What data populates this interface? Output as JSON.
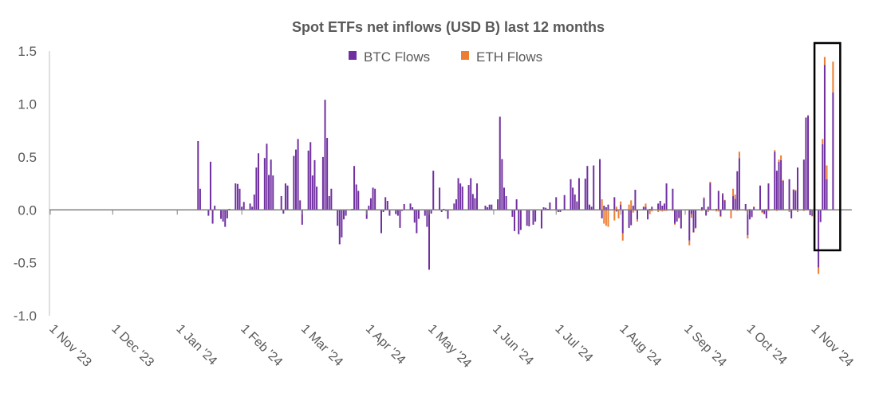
{
  "chart_data": {
    "type": "bar",
    "stacked": true,
    "title": "Spot ETFs net inflows (USD B) last 12 months",
    "xlabel": "",
    "ylabel": "",
    "ylim": [
      -1.0,
      1.5
    ],
    "xlim": [
      "2023-11-01",
      "2024-11-20"
    ],
    "grid": false,
    "legend_position": "top",
    "yticks": [
      -1.0,
      -0.5,
      0.0,
      0.5,
      1.0,
      1.5
    ],
    "ytick_labels": [
      "-1.0",
      "-0.5",
      "0.0",
      "0.5",
      "1.0",
      "1.5"
    ],
    "xticks": [
      "2023-11-01",
      "2023-12-01",
      "2024-01-01",
      "2024-02-01",
      "2024-03-01",
      "2024-04-01",
      "2024-05-01",
      "2024-06-01",
      "2024-07-01",
      "2024-08-01",
      "2024-09-01",
      "2024-10-01",
      "2024-11-01"
    ],
    "xtick_labels": [
      "1 Nov '23",
      "1 Dec '23",
      "1 Jan '24",
      "1 Feb '24",
      "1 Mar '24",
      "1 Apr '24",
      "1 May '24",
      "1 Jun '24",
      "1 Jul '24",
      "1 Aug '24",
      "1 Sep '24",
      "1 Oct '24",
      "1 Nov '24"
    ],
    "series_names": {
      "btc": "BTC Flows",
      "eth": "ETH Flows"
    },
    "colors": {
      "btc": "#7030A0",
      "eth": "#ED7D31",
      "axis": "#808080",
      "text": "#595959",
      "highlight": "#000000"
    },
    "highlight_range": [
      "2024-11-04",
      "2024-11-11"
    ],
    "data": [
      {
        "d": "2024-01-11",
        "btc": 0.65,
        "eth": 0
      },
      {
        "d": "2024-01-12",
        "btc": 0.2,
        "eth": 0
      },
      {
        "d": "2024-01-16",
        "btc": -0.055,
        "eth": 0
      },
      {
        "d": "2024-01-17",
        "btc": 0.455,
        "eth": 0
      },
      {
        "d": "2024-01-18",
        "btc": -0.13,
        "eth": 0
      },
      {
        "d": "2024-01-19",
        "btc": 0.04,
        "eth": 0
      },
      {
        "d": "2024-01-22",
        "btc": -0.085,
        "eth": 0
      },
      {
        "d": "2024-01-23",
        "btc": -0.11,
        "eth": 0
      },
      {
        "d": "2024-01-24",
        "btc": -0.16,
        "eth": 0
      },
      {
        "d": "2024-01-25",
        "btc": -0.08,
        "eth": 0
      },
      {
        "d": "2024-01-26",
        "btc": 0.01,
        "eth": 0
      },
      {
        "d": "2024-01-29",
        "btc": 0.25,
        "eth": 0
      },
      {
        "d": "2024-01-30",
        "btc": 0.245,
        "eth": 0
      },
      {
        "d": "2024-01-31",
        "btc": 0.2,
        "eth": 0
      },
      {
        "d": "2024-02-01",
        "btc": 0.03,
        "eth": 0
      },
      {
        "d": "2024-02-02",
        "btc": 0.075,
        "eth": 0
      },
      {
        "d": "2024-02-05",
        "btc": 0.06,
        "eth": 0
      },
      {
        "d": "2024-02-06",
        "btc": 0.03,
        "eth": 0
      },
      {
        "d": "2024-02-07",
        "btc": 0.145,
        "eth": 0
      },
      {
        "d": "2024-02-08",
        "btc": 0.4,
        "eth": 0
      },
      {
        "d": "2024-02-09",
        "btc": 0.535,
        "eth": 0
      },
      {
        "d": "2024-02-12",
        "btc": 0.49,
        "eth": 0
      },
      {
        "d": "2024-02-13",
        "btc": 0.625,
        "eth": 0
      },
      {
        "d": "2024-02-14",
        "btc": 0.33,
        "eth": 0
      },
      {
        "d": "2024-02-15",
        "btc": 0.475,
        "eth": 0
      },
      {
        "d": "2024-02-16",
        "btc": 0.325,
        "eth": 0
      },
      {
        "d": "2024-02-20",
        "btc": 0.13,
        "eth": 0
      },
      {
        "d": "2024-02-21",
        "btc": -0.035,
        "eth": 0
      },
      {
        "d": "2024-02-22",
        "btc": 0.25,
        "eth": 0
      },
      {
        "d": "2024-02-23",
        "btc": 0.23,
        "eth": 0
      },
      {
        "d": "2024-02-26",
        "btc": 0.51,
        "eth": 0
      },
      {
        "d": "2024-02-27",
        "btc": 0.57,
        "eth": 0
      },
      {
        "d": "2024-02-28",
        "btc": 0.67,
        "eth": 0
      },
      {
        "d": "2024-02-29",
        "btc": 0.09,
        "eth": 0
      },
      {
        "d": "2024-03-01",
        "btc": -0.14,
        "eth": 0
      },
      {
        "d": "2024-03-04",
        "btc": 0.56,
        "eth": 0
      },
      {
        "d": "2024-03-05",
        "btc": 0.64,
        "eth": 0
      },
      {
        "d": "2024-03-06",
        "btc": 0.325,
        "eth": 0
      },
      {
        "d": "2024-03-07",
        "btc": 0.47,
        "eth": 0
      },
      {
        "d": "2024-03-08",
        "btc": 0.22,
        "eth": 0
      },
      {
        "d": "2024-03-11",
        "btc": 0.5,
        "eth": 0
      },
      {
        "d": "2024-03-12",
        "btc": 1.04,
        "eth": 0
      },
      {
        "d": "2024-03-13",
        "btc": 0.68,
        "eth": 0
      },
      {
        "d": "2024-03-14",
        "btc": 0.13,
        "eth": 0
      },
      {
        "d": "2024-03-15",
        "btc": 0.2,
        "eth": 0
      },
      {
        "d": "2024-03-18",
        "btc": -0.15,
        "eth": 0
      },
      {
        "d": "2024-03-19",
        "btc": -0.325,
        "eth": 0
      },
      {
        "d": "2024-03-20",
        "btc": -0.26,
        "eth": 0
      },
      {
        "d": "2024-03-21",
        "btc": -0.09,
        "eth": 0
      },
      {
        "d": "2024-03-22",
        "btc": -0.055,
        "eth": 0
      },
      {
        "d": "2024-03-25",
        "btc": 0.01,
        "eth": 0
      },
      {
        "d": "2024-03-26",
        "btc": 0.415,
        "eth": 0
      },
      {
        "d": "2024-03-27",
        "btc": 0.24,
        "eth": 0
      },
      {
        "d": "2024-03-28",
        "btc": 0.18,
        "eth": 0
      },
      {
        "d": "2024-04-01",
        "btc": -0.085,
        "eth": 0
      },
      {
        "d": "2024-04-02",
        "btc": 0.04,
        "eth": 0
      },
      {
        "d": "2024-04-03",
        "btc": 0.11,
        "eth": 0
      },
      {
        "d": "2024-04-04",
        "btc": 0.21,
        "eth": 0
      },
      {
        "d": "2024-04-05",
        "btc": 0.2,
        "eth": 0
      },
      {
        "d": "2024-04-08",
        "btc": -0.22,
        "eth": 0
      },
      {
        "d": "2024-04-09",
        "btc": -0.02,
        "eth": 0
      },
      {
        "d": "2024-04-10",
        "btc": 0.12,
        "eth": 0
      },
      {
        "d": "2024-04-11",
        "btc": 0.085,
        "eth": 0
      },
      {
        "d": "2024-04-12",
        "btc": -0.055,
        "eth": 0
      },
      {
        "d": "2024-04-15",
        "btc": -0.04,
        "eth": 0
      },
      {
        "d": "2024-04-16",
        "btc": -0.055,
        "eth": 0
      },
      {
        "d": "2024-04-17",
        "btc": -0.17,
        "eth": 0
      },
      {
        "d": "2024-04-18",
        "btc": -0.01,
        "eth": 0
      },
      {
        "d": "2024-04-19",
        "btc": 0.055,
        "eth": 0
      },
      {
        "d": "2024-04-22",
        "btc": 0.06,
        "eth": 0
      },
      {
        "d": "2024-04-23",
        "btc": 0.025,
        "eth": 0
      },
      {
        "d": "2024-04-24",
        "btc": -0.12,
        "eth": 0
      },
      {
        "d": "2024-04-25",
        "btc": -0.22,
        "eth": 0
      },
      {
        "d": "2024-04-26",
        "btc": -0.085,
        "eth": 0
      },
      {
        "d": "2024-04-29",
        "btc": -0.055,
        "eth": 0
      },
      {
        "d": "2024-04-30",
        "btc": -0.16,
        "eth": 0
      },
      {
        "d": "2024-05-01",
        "btc": -0.565,
        "eth": 0
      },
      {
        "d": "2024-05-02",
        "btc": -0.035,
        "eth": 0
      },
      {
        "d": "2024-05-03",
        "btc": 0.37,
        "eth": 0
      },
      {
        "d": "2024-05-06",
        "btc": 0.21,
        "eth": 0
      },
      {
        "d": "2024-05-07",
        "btc": -0.02,
        "eth": 0
      },
      {
        "d": "2024-05-08",
        "btc": 0.01,
        "eth": 0
      },
      {
        "d": "2024-05-09",
        "btc": -0.01,
        "eth": 0
      },
      {
        "d": "2024-05-10",
        "btc": -0.085,
        "eth": 0
      },
      {
        "d": "2024-05-13",
        "btc": 0.06,
        "eth": 0
      },
      {
        "d": "2024-05-14",
        "btc": 0.1,
        "eth": 0
      },
      {
        "d": "2024-05-15",
        "btc": 0.3,
        "eth": 0
      },
      {
        "d": "2024-05-16",
        "btc": 0.25,
        "eth": 0
      },
      {
        "d": "2024-05-17",
        "btc": 0.22,
        "eth": 0
      },
      {
        "d": "2024-05-20",
        "btc": 0.235,
        "eth": 0
      },
      {
        "d": "2024-05-21",
        "btc": 0.3,
        "eth": 0
      },
      {
        "d": "2024-05-22",
        "btc": 0.15,
        "eth": 0
      },
      {
        "d": "2024-05-23",
        "btc": 0.11,
        "eth": 0
      },
      {
        "d": "2024-05-24",
        "btc": 0.25,
        "eth": 0
      },
      {
        "d": "2024-05-28",
        "btc": 0.04,
        "eth": 0
      },
      {
        "d": "2024-05-29",
        "btc": 0.025,
        "eth": 0
      },
      {
        "d": "2024-05-30",
        "btc": 0.05,
        "eth": 0
      },
      {
        "d": "2024-05-31",
        "btc": 0.05,
        "eth": 0
      },
      {
        "d": "2024-06-03",
        "btc": 0.1,
        "eth": 0
      },
      {
        "d": "2024-06-04",
        "btc": 0.88,
        "eth": 0
      },
      {
        "d": "2024-06-05",
        "btc": 0.48,
        "eth": 0
      },
      {
        "d": "2024-06-06",
        "btc": 0.21,
        "eth": 0
      },
      {
        "d": "2024-06-07",
        "btc": 0.13,
        "eth": 0
      },
      {
        "d": "2024-06-10",
        "btc": -0.065,
        "eth": 0
      },
      {
        "d": "2024-06-11",
        "btc": -0.2,
        "eth": 0
      },
      {
        "d": "2024-06-12",
        "btc": 0.1,
        "eth": 0
      },
      {
        "d": "2024-06-13",
        "btc": -0.23,
        "eth": 0
      },
      {
        "d": "2024-06-14",
        "btc": -0.19,
        "eth": 0
      },
      {
        "d": "2024-06-17",
        "btc": -0.15,
        "eth": 0
      },
      {
        "d": "2024-06-18",
        "btc": -0.155,
        "eth": 0
      },
      {
        "d": "2024-06-20",
        "btc": -0.14,
        "eth": 0
      },
      {
        "d": "2024-06-21",
        "btc": -0.11,
        "eth": 0
      },
      {
        "d": "2024-06-24",
        "btc": -0.175,
        "eth": 0
      },
      {
        "d": "2024-06-25",
        "btc": 0.025,
        "eth": 0
      },
      {
        "d": "2024-06-26",
        "btc": 0.02,
        "eth": 0
      },
      {
        "d": "2024-06-27",
        "btc": 0.01,
        "eth": 0
      },
      {
        "d": "2024-06-28",
        "btc": 0.07,
        "eth": 0
      },
      {
        "d": "2024-07-01",
        "btc": 0.12,
        "eth": 0
      },
      {
        "d": "2024-07-02",
        "btc": -0.02,
        "eth": 0
      },
      {
        "d": "2024-07-03",
        "btc": -0.02,
        "eth": 0
      },
      {
        "d": "2024-07-05",
        "btc": 0.14,
        "eth": 0
      },
      {
        "d": "2024-07-08",
        "btc": 0.29,
        "eth": 0
      },
      {
        "d": "2024-07-09",
        "btc": 0.21,
        "eth": 0
      },
      {
        "d": "2024-07-10",
        "btc": 0.145,
        "eth": 0
      },
      {
        "d": "2024-07-11",
        "btc": 0.08,
        "eth": 0
      },
      {
        "d": "2024-07-12",
        "btc": 0.3,
        "eth": 0
      },
      {
        "d": "2024-07-15",
        "btc": 0.295,
        "eth": 0
      },
      {
        "d": "2024-07-16",
        "btc": 0.415,
        "eth": 0
      },
      {
        "d": "2024-07-17",
        "btc": 0.05,
        "eth": 0
      },
      {
        "d": "2024-07-18",
        "btc": 0.03,
        "eth": 0
      },
      {
        "d": "2024-07-19",
        "btc": 0.42,
        "eth": 0
      },
      {
        "d": "2024-07-22",
        "btc": 0.48,
        "eth": 0
      },
      {
        "d": "2024-07-23",
        "btc": -0.08,
        "eth": 0.1
      },
      {
        "d": "2024-07-24",
        "btc": 0.04,
        "eth": -0.13
      },
      {
        "d": "2024-07-25",
        "btc": 0.025,
        "eth": -0.15
      },
      {
        "d": "2024-07-26",
        "btc": 0.05,
        "eth": -0.16
      },
      {
        "d": "2024-07-29",
        "btc": 0.12,
        "eth": -0.1
      },
      {
        "d": "2024-07-30",
        "btc": -0.015,
        "eth": 0.03
      },
      {
        "d": "2024-07-31",
        "btc": -0.005,
        "eth": -0.075
      },
      {
        "d": "2024-08-01",
        "btc": 0.05,
        "eth": 0.03
      },
      {
        "d": "2024-08-02",
        "btc": -0.22,
        "eth": -0.07
      },
      {
        "d": "2024-08-05",
        "btc": -0.17,
        "eth": 0.05
      },
      {
        "d": "2024-08-06",
        "btc": -0.145,
        "eth": 0.09
      },
      {
        "d": "2024-08-07",
        "btc": 0.04,
        "eth": -0.025
      },
      {
        "d": "2024-08-08",
        "btc": 0.19,
        "eth": -0.01
      },
      {
        "d": "2024-08-09",
        "btc": -0.09,
        "eth": -0.02
      },
      {
        "d": "2024-08-12",
        "btc": 0.025,
        "eth": 0.008
      },
      {
        "d": "2024-08-13",
        "btc": 0.03,
        "eth": 0.03
      },
      {
        "d": "2024-08-14",
        "btc": -0.09,
        "eth": 0
      },
      {
        "d": "2024-08-15",
        "btc": 0.01,
        "eth": -0.04
      },
      {
        "d": "2024-08-16",
        "btc": 0.03,
        "eth": -0.015
      },
      {
        "d": "2024-08-19",
        "btc": 0.06,
        "eth": -0.02
      },
      {
        "d": "2024-08-20",
        "btc": 0.085,
        "eth": -0.01
      },
      {
        "d": "2024-08-21",
        "btc": 0.04,
        "eth": -0.015
      },
      {
        "d": "2024-08-22",
        "btc": 0.06,
        "eth": -0.01
      },
      {
        "d": "2024-08-23",
        "btc": 0.25,
        "eth": -0.01
      },
      {
        "d": "2024-08-26",
        "btc": 0.2,
        "eth": -0.01
      },
      {
        "d": "2024-08-27",
        "btc": -0.13,
        "eth": -0.01
      },
      {
        "d": "2024-08-28",
        "btc": -0.11,
        "eth": 0
      },
      {
        "d": "2024-08-29",
        "btc": -0.075,
        "eth": -0.005
      },
      {
        "d": "2024-08-30",
        "btc": -0.175,
        "eth": 0
      },
      {
        "d": "2024-09-03",
        "btc": -0.29,
        "eth": -0.045
      },
      {
        "d": "2024-09-04",
        "btc": -0.04,
        "eth": -0.035
      },
      {
        "d": "2024-09-05",
        "btc": -0.21,
        "eth": -0.005
      },
      {
        "d": "2024-09-06",
        "btc": -0.17,
        "eth": -0.005
      },
      {
        "d": "2024-09-09",
        "btc": 0.025,
        "eth": -0.01
      },
      {
        "d": "2024-09-10",
        "btc": 0.11,
        "eth": 0.01
      },
      {
        "d": "2024-09-11",
        "btc": -0.05,
        "eth": -0.005
      },
      {
        "d": "2024-09-12",
        "btc": 0.03,
        "eth": -0.02
      },
      {
        "d": "2024-09-13",
        "btc": 0.255,
        "eth": 0.01
      },
      {
        "d": "2024-09-16",
        "btc": 0.01,
        "eth": -0.015
      },
      {
        "d": "2024-09-17",
        "btc": 0.18,
        "eth": -0.015
      },
      {
        "d": "2024-09-18",
        "btc": -0.06,
        "eth": -0.005
      },
      {
        "d": "2024-09-19",
        "btc": 0.15,
        "eth": 0.01
      },
      {
        "d": "2024-09-20",
        "btc": 0.09,
        "eth": 0.005
      },
      {
        "d": "2024-09-23",
        "btc": 0.0,
        "eth": -0.08
      },
      {
        "d": "2024-09-24",
        "btc": 0.13,
        "eth": 0.07
      },
      {
        "d": "2024-09-25",
        "btc": 0.105,
        "eth": 0.04
      },
      {
        "d": "2024-09-26",
        "btc": 0.365,
        "eth": -0.01
      },
      {
        "d": "2024-09-27",
        "btc": 0.49,
        "eth": 0.06
      },
      {
        "d": "2024-09-30",
        "btc": 0.055,
        "eth": -0.01
      },
      {
        "d": "2024-10-01",
        "btc": -0.24,
        "eth": -0.03
      },
      {
        "d": "2024-10-02",
        "btc": -0.09,
        "eth": 0.01
      },
      {
        "d": "2024-10-03",
        "btc": -0.065,
        "eth": -0.005
      },
      {
        "d": "2024-10-04",
        "btc": 0.025,
        "eth": 0.008
      },
      {
        "d": "2024-10-07",
        "btc": 0.23,
        "eth": 0
      },
      {
        "d": "2024-10-08",
        "btc": -0.02,
        "eth": -0.01
      },
      {
        "d": "2024-10-09",
        "btc": -0.04,
        "eth": 0
      },
      {
        "d": "2024-10-10",
        "btc": -0.08,
        "eth": 0.01
      },
      {
        "d": "2024-10-11",
        "btc": 0.25,
        "eth": -0.01
      },
      {
        "d": "2024-10-14",
        "btc": 0.55,
        "eth": 0.015
      },
      {
        "d": "2024-10-15",
        "btc": 0.37,
        "eth": -0.01
      },
      {
        "d": "2024-10-16",
        "btc": 0.455,
        "eth": 0.02
      },
      {
        "d": "2024-10-17",
        "btc": 0.47,
        "eth": 0.045
      },
      {
        "d": "2024-10-18",
        "btc": 0.275,
        "eth": 0.008
      },
      {
        "d": "2024-10-21",
        "btc": 0.29,
        "eth": -0.02
      },
      {
        "d": "2024-10-22",
        "btc": -0.08,
        "eth": 0.01
      },
      {
        "d": "2024-10-23",
        "btc": 0.19,
        "eth": 0.005
      },
      {
        "d": "2024-10-24",
        "btc": 0.18,
        "eth": 0.01
      },
      {
        "d": "2024-10-25",
        "btc": 0.4,
        "eth": -0.02
      },
      {
        "d": "2024-10-28",
        "btc": 0.475,
        "eth": -0.01
      },
      {
        "d": "2024-10-29",
        "btc": 0.87,
        "eth": 0.005
      },
      {
        "d": "2024-10-30",
        "btc": 0.89,
        "eth": 0.005
      },
      {
        "d": "2024-10-31",
        "btc": -0.05,
        "eth": 0.01
      },
      {
        "d": "2024-11-01",
        "btc": -0.055,
        "eth": -0.005
      },
      {
        "d": "2024-11-04",
        "btc": -0.545,
        "eth": -0.06
      },
      {
        "d": "2024-11-05",
        "btc": -0.115,
        "eth": 0
      },
      {
        "d": "2024-11-06",
        "btc": 0.62,
        "eth": 0.05
      },
      {
        "d": "2024-11-07",
        "btc": 1.37,
        "eth": 0.075
      },
      {
        "d": "2024-11-08",
        "btc": 0.29,
        "eth": 0.13
      },
      {
        "d": "2024-11-11",
        "btc": 1.11,
        "eth": 0.29
      }
    ]
  }
}
